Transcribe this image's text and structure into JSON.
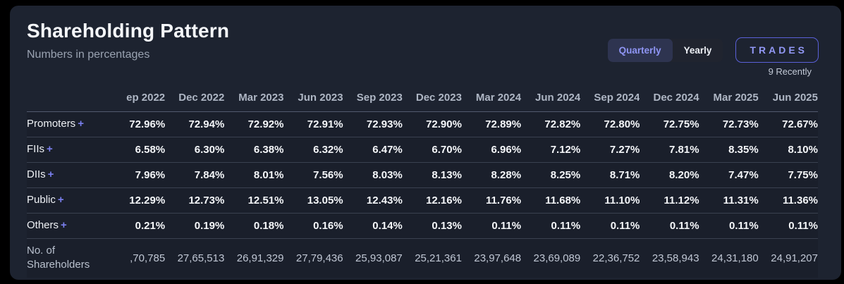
{
  "header": {
    "title": "Shareholding Pattern",
    "subtitle": "Numbers in percentages",
    "toggle": {
      "quarterly": "Quarterly",
      "yearly": "Yearly"
    },
    "trades_button": "TRADES",
    "trades_caption": "9 Recently"
  },
  "colors": {
    "accent_purple": "#6e74f0",
    "card_background": "#1d2330",
    "row_background": "#1a1f2b",
    "percent_text": "#f5f7fa",
    "muted_text": "#9aa3b2"
  },
  "table": {
    "expand_icon": "+",
    "columns": [
      "ep 2022",
      "Dec 2022",
      "Mar 2023",
      "Jun 2023",
      "Sep 2023",
      "Dec 2023",
      "Mar 2024",
      "Jun 2024",
      "Sep 2024",
      "Dec 2024",
      "Mar 2025",
      "Jun 2025"
    ],
    "rows": [
      {
        "key": "promoters",
        "label": "Promoters",
        "expandable": true,
        "values": [
          "72.96%",
          "72.94%",
          "72.92%",
          "72.91%",
          "72.93%",
          "72.90%",
          "72.89%",
          "72.82%",
          "72.80%",
          "72.75%",
          "72.73%",
          "72.67%"
        ]
      },
      {
        "key": "fiis",
        "label": "FIIs",
        "expandable": true,
        "values": [
          "6.58%",
          "6.30%",
          "6.38%",
          "6.32%",
          "6.47%",
          "6.70%",
          "6.96%",
          "7.12%",
          "7.27%",
          "7.81%",
          "8.35%",
          "8.10%"
        ]
      },
      {
        "key": "diis",
        "label": "DIIs",
        "expandable": true,
        "values": [
          "7.96%",
          "7.84%",
          "8.01%",
          "7.56%",
          "8.03%",
          "8.13%",
          "8.28%",
          "8.25%",
          "8.71%",
          "8.20%",
          "7.47%",
          "7.75%"
        ]
      },
      {
        "key": "public",
        "label": "Public",
        "expandable": true,
        "values": [
          "12.29%",
          "12.73%",
          "12.51%",
          "13.05%",
          "12.43%",
          "12.16%",
          "11.76%",
          "11.68%",
          "11.10%",
          "11.12%",
          "11.31%",
          "11.36%"
        ]
      },
      {
        "key": "others",
        "label": "Others",
        "expandable": true,
        "values": [
          "0.21%",
          "0.19%",
          "0.18%",
          "0.16%",
          "0.14%",
          "0.13%",
          "0.11%",
          "0.11%",
          "0.11%",
          "0.11%",
          "0.11%",
          "0.11%"
        ]
      },
      {
        "key": "shareholders",
        "label": "No. of Shareholders",
        "expandable": false,
        "values": [
          ",70,785",
          "27,65,513",
          "26,91,329",
          "27,79,436",
          "25,93,087",
          "25,21,361",
          "23,97,648",
          "23,69,089",
          "22,36,752",
          "23,58,943",
          "24,31,180",
          "24,91,207"
        ]
      }
    ]
  }
}
